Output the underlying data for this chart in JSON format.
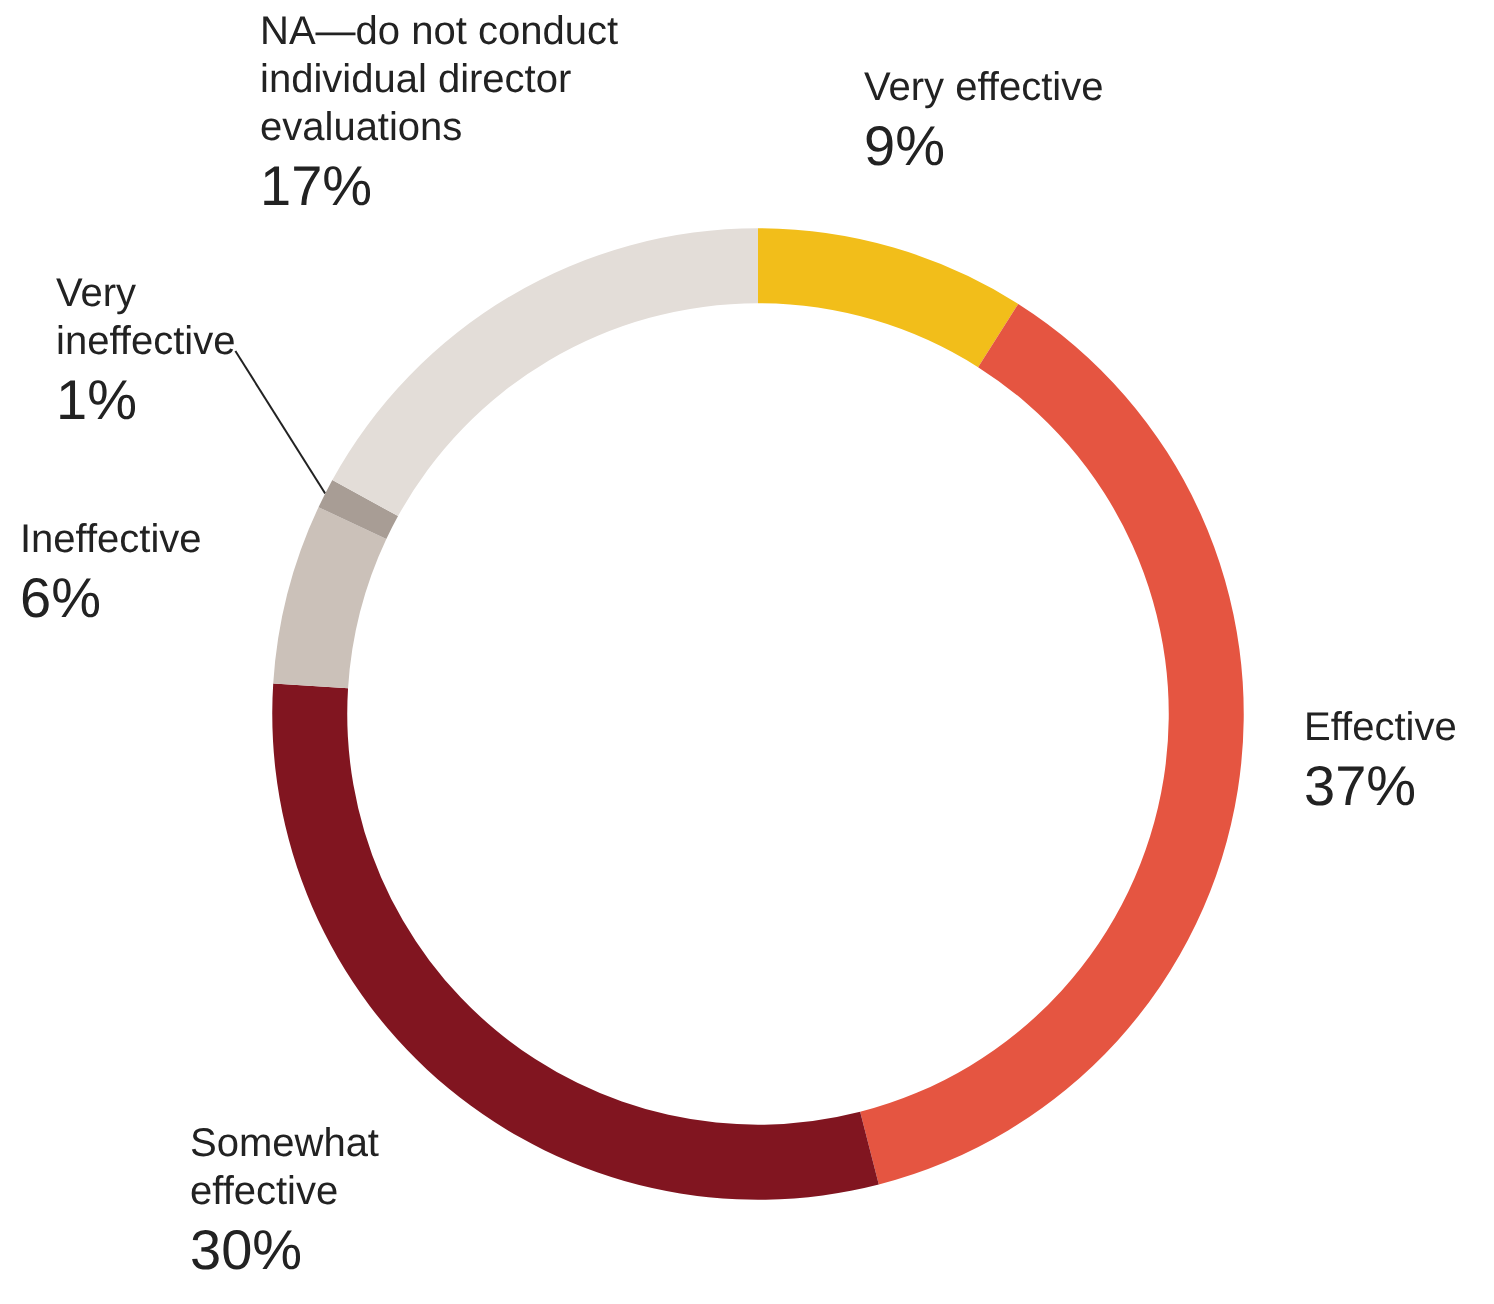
{
  "chart_data": {
    "type": "donut",
    "categories": [
      "Very effective",
      "Effective",
      "Somewhat effective",
      "Ineffective",
      "Very ineffective",
      "NA—do not conduct individual director evaluations"
    ],
    "values": [
      9,
      37,
      30,
      6,
      1,
      17
    ],
    "value_labels": [
      "9%",
      "37%",
      "30%",
      "6%",
      "1%",
      "17%"
    ],
    "colors": [
      "#f2be1a",
      "#e55541",
      "#811520",
      "#cbc1b9",
      "#a89d95",
      "#e3ddd8"
    ],
    "legend": false
  }
}
